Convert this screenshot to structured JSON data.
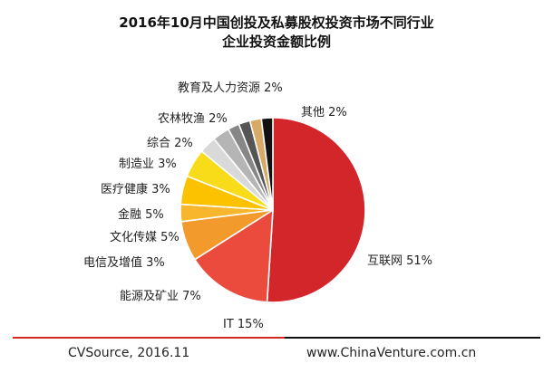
{
  "chart_data": {
    "type": "pie",
    "title_lines": [
      "2016年10月中国创投及私募股权投资市场不同行业",
      "企业投资金额比例"
    ],
    "slices": [
      {
        "label": "互联网 51%",
        "value": 51,
        "color": "#d2262a"
      },
      {
        "label": "IT 15%",
        "value": 15,
        "color": "#ea4b3d"
      },
      {
        "label": "能源及矿业 7%",
        "value": 7,
        "color": "#f39a2c"
      },
      {
        "label": "电信及增值 3%",
        "value": 3,
        "color": "#f7b62b"
      },
      {
        "label": "文化传媒 5%",
        "value": 5,
        "color": "#fcc200"
      },
      {
        "label": "金融 5%",
        "value": 5,
        "color": "#f8dc1a"
      },
      {
        "label": "医疗健康 3%",
        "value": 3,
        "color": "#d9d9d9"
      },
      {
        "label": "制造业 3%",
        "value": 3,
        "color": "#b5b5b5"
      },
      {
        "label": "综合 2%",
        "value": 2,
        "color": "#878787"
      },
      {
        "label": "农林牧渔 2%",
        "value": 2,
        "color": "#555555"
      },
      {
        "label": "教育及人力资源 2%",
        "value": 2,
        "color": "#d8aa67"
      },
      {
        "label": "其他 2%",
        "value": 2,
        "color": "#111111"
      }
    ]
  },
  "footer": {
    "source": "CVSource, 2016.11",
    "site": "www.ChinaVenture.com.cn"
  },
  "colors": {
    "accent_red": "#d7281c",
    "rule_dark": "#111111"
  }
}
